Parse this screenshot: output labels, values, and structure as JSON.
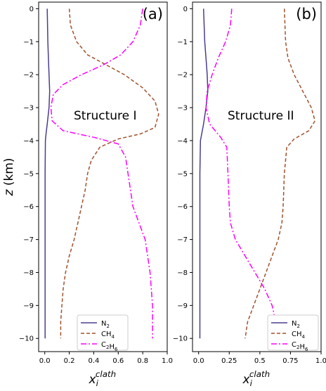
{
  "chart_data": [
    {
      "type": "line",
      "panel_label": "(a)",
      "annotation": "Structure I",
      "xlabel": "x_i^clath",
      "ylabel": "z (km)",
      "xlim": [
        -0.05,
        1.0
      ],
      "ylim": [
        -10.4,
        0.2
      ],
      "xticks": [
        0.0,
        0.2,
        0.4,
        0.6,
        0.8,
        1.0
      ],
      "xtick_labels": [
        "0.0",
        "0.2",
        "0.4",
        "0.6",
        "0.8",
        "1.0"
      ],
      "yticks": [
        0,
        -1,
        -2,
        -3,
        -4,
        -5,
        -6,
        -7,
        -8,
        -9,
        -10
      ],
      "ytick_labels": [
        "0",
        "−1",
        "−2",
        "−3",
        "−4",
        "−5",
        "−6",
        "−7",
        "−8",
        "−9",
        "−10"
      ],
      "legend_position": "lower-center",
      "series": [
        {
          "name": "N₂",
          "color": "#4b3d8f",
          "dash": "solid",
          "points": [
            [
              0.02,
              0
            ],
            [
              0.025,
              -1
            ],
            [
              0.03,
              -1.5
            ],
            [
              0.035,
              -2
            ],
            [
              0.04,
              -2.5
            ],
            [
              0.035,
              -3
            ],
            [
              0.02,
              -3.5
            ],
            [
              0.01,
              -3.8
            ],
            [
              0.005,
              -4
            ],
            [
              0.003,
              -5
            ],
            [
              0.003,
              -6
            ],
            [
              0.003,
              -7
            ],
            [
              0.003,
              -8
            ],
            [
              0.003,
              -9
            ],
            [
              0.003,
              -10
            ]
          ]
        },
        {
          "name": "CH₄",
          "color": "#a0522d",
          "dash": "dashed",
          "points": [
            [
              0.2,
              0
            ],
            [
              0.21,
              -0.5
            ],
            [
              0.26,
              -1
            ],
            [
              0.35,
              -1.4
            ],
            [
              0.5,
              -1.7
            ],
            [
              0.65,
              -2
            ],
            [
              0.8,
              -2.4
            ],
            [
              0.9,
              -2.8
            ],
            [
              0.93,
              -3.2
            ],
            [
              0.9,
              -3.6
            ],
            [
              0.78,
              -3.8
            ],
            [
              0.6,
              -3.95
            ],
            [
              0.45,
              -4.2
            ],
            [
              0.38,
              -4.6
            ],
            [
              0.35,
              -5
            ],
            [
              0.33,
              -5.5
            ],
            [
              0.3,
              -6
            ],
            [
              0.27,
              -6.5
            ],
            [
              0.24,
              -7
            ],
            [
              0.2,
              -7.5
            ],
            [
              0.17,
              -8
            ],
            [
              0.15,
              -8.5
            ],
            [
              0.14,
              -9
            ],
            [
              0.13,
              -9.5
            ],
            [
              0.13,
              -10
            ]
          ]
        },
        {
          "name": "C₂H₆",
          "color": "#ff00ff",
          "dash": "dashdot",
          "points": [
            [
              0.8,
              0
            ],
            [
              0.78,
              -0.5
            ],
            [
              0.72,
              -1
            ],
            [
              0.62,
              -1.4
            ],
            [
              0.48,
              -1.7
            ],
            [
              0.3,
              -2
            ],
            [
              0.15,
              -2.3
            ],
            [
              0.07,
              -2.6
            ],
            [
              0.05,
              -3
            ],
            [
              0.06,
              -3.4
            ],
            [
              0.15,
              -3.7
            ],
            [
              0.4,
              -3.9
            ],
            [
              0.6,
              -4.1
            ],
            [
              0.66,
              -4.5
            ],
            [
              0.68,
              -5
            ],
            [
              0.72,
              -6
            ],
            [
              0.77,
              -6.5
            ],
            [
              0.82,
              -7
            ],
            [
              0.86,
              -8
            ],
            [
              0.88,
              -9
            ],
            [
              0.88,
              -10
            ]
          ]
        }
      ]
    },
    {
      "type": "line",
      "panel_label": "(b)",
      "annotation": "Structure II",
      "xlabel": "x_i^clath",
      "ylabel": "",
      "xlim": [
        -0.05,
        1.0
      ],
      "ylim": [
        -10.4,
        0.2
      ],
      "xticks": [
        0.0,
        0.25,
        0.5,
        0.75,
        1.0
      ],
      "xtick_labels": [
        "0.0",
        "0.25",
        "0.5",
        "0.75",
        "1.0"
      ],
      "yticks": [
        0,
        -1,
        -2,
        -3,
        -4,
        -5,
        -6,
        -7,
        -8,
        -9,
        -10
      ],
      "ytick_labels": [
        "0",
        "−1",
        "−2",
        "−3",
        "−4",
        "−5",
        "−6",
        "−7",
        "−8",
        "−9",
        "−10"
      ],
      "legend_position": "lower-right",
      "series": [
        {
          "name": "N₂",
          "color": "#4b3d8f",
          "dash": "solid",
          "points": [
            [
              0.04,
              0
            ],
            [
              0.05,
              -1
            ],
            [
              0.06,
              -1.5
            ],
            [
              0.07,
              -2
            ],
            [
              0.075,
              -2.5
            ],
            [
              0.06,
              -3
            ],
            [
              0.04,
              -3.5
            ],
            [
              0.015,
              -4
            ],
            [
              0.01,
              -5
            ],
            [
              0.01,
              -6
            ],
            [
              0.01,
              -7
            ],
            [
              0.01,
              -8
            ],
            [
              0.01,
              -9
            ],
            [
              0.01,
              -10
            ]
          ]
        },
        {
          "name": "CH₄",
          "color": "#a0522d",
          "dash": "dashed",
          "points": [
            [
              0.7,
              0
            ],
            [
              0.71,
              -1
            ],
            [
              0.73,
              -1.5
            ],
            [
              0.78,
              -2
            ],
            [
              0.85,
              -2.5
            ],
            [
              0.92,
              -3
            ],
            [
              0.95,
              -3.4
            ],
            [
              0.9,
              -3.7
            ],
            [
              0.78,
              -3.95
            ],
            [
              0.72,
              -4.2
            ],
            [
              0.7,
              -5
            ],
            [
              0.69,
              -6
            ],
            [
              0.68,
              -6.5
            ],
            [
              0.65,
              -7
            ],
            [
              0.6,
              -7.5
            ],
            [
              0.55,
              -8
            ],
            [
              0.5,
              -8.5
            ],
            [
              0.45,
              -9
            ],
            [
              0.4,
              -9.5
            ],
            [
              0.38,
              -10
            ]
          ]
        },
        {
          "name": "C₂H₆",
          "color": "#ff00ff",
          "dash": "dashdot",
          "points": [
            [
              0.27,
              0
            ],
            [
              0.26,
              -0.5
            ],
            [
              0.22,
              -1
            ],
            [
              0.16,
              -1.5
            ],
            [
              0.11,
              -2
            ],
            [
              0.07,
              -2.5
            ],
            [
              0.06,
              -3
            ],
            [
              0.09,
              -3.5
            ],
            [
              0.18,
              -3.9
            ],
            [
              0.23,
              -4.2
            ],
            [
              0.24,
              -5
            ],
            [
              0.25,
              -6
            ],
            [
              0.26,
              -6.5
            ],
            [
              0.3,
              -7
            ],
            [
              0.38,
              -7.5
            ],
            [
              0.46,
              -8
            ],
            [
              0.54,
              -8.5
            ],
            [
              0.6,
              -9
            ],
            [
              0.63,
              -9.5
            ],
            [
              0.65,
              -10
            ]
          ]
        }
      ]
    }
  ]
}
